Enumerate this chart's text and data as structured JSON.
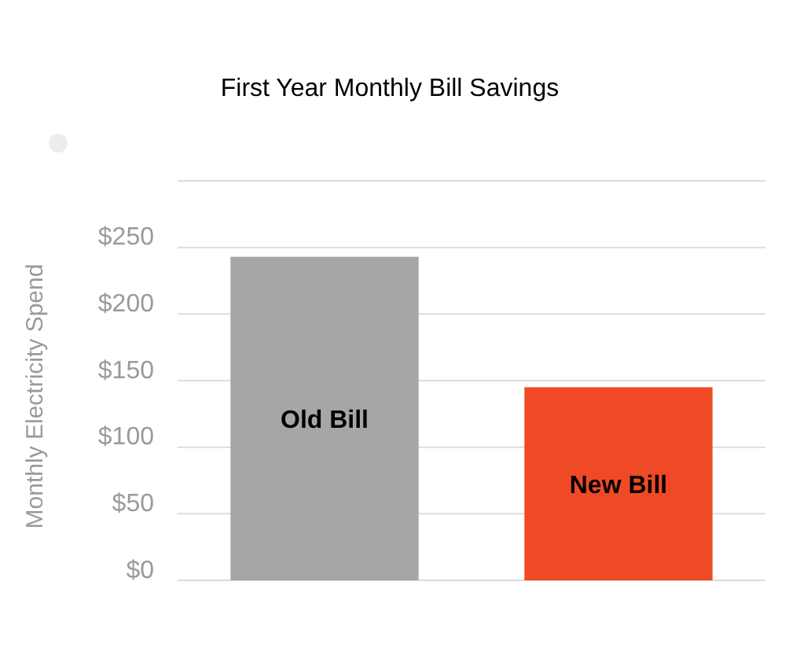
{
  "chart_data": {
    "type": "bar",
    "title": "First Year Monthly Bill Savings",
    "ylabel": "Monthly Electricity Spend",
    "categories": [
      "Old Bill",
      "New Bill"
    ],
    "values": [
      243,
      145
    ],
    "colors": [
      "#a6a6a6",
      "#ef4a25"
    ],
    "ylim": [
      0,
      300
    ],
    "yticks": [
      {
        "value": 0,
        "label": "$0"
      },
      {
        "value": 50,
        "label": "$50"
      },
      {
        "value": 100,
        "label": "$100"
      },
      {
        "value": 150,
        "label": "$150"
      },
      {
        "value": 200,
        "label": "$200"
      },
      {
        "value": 250,
        "label": "$250"
      },
      {
        "value": 300,
        "label": null
      }
    ],
    "grid": "y"
  }
}
